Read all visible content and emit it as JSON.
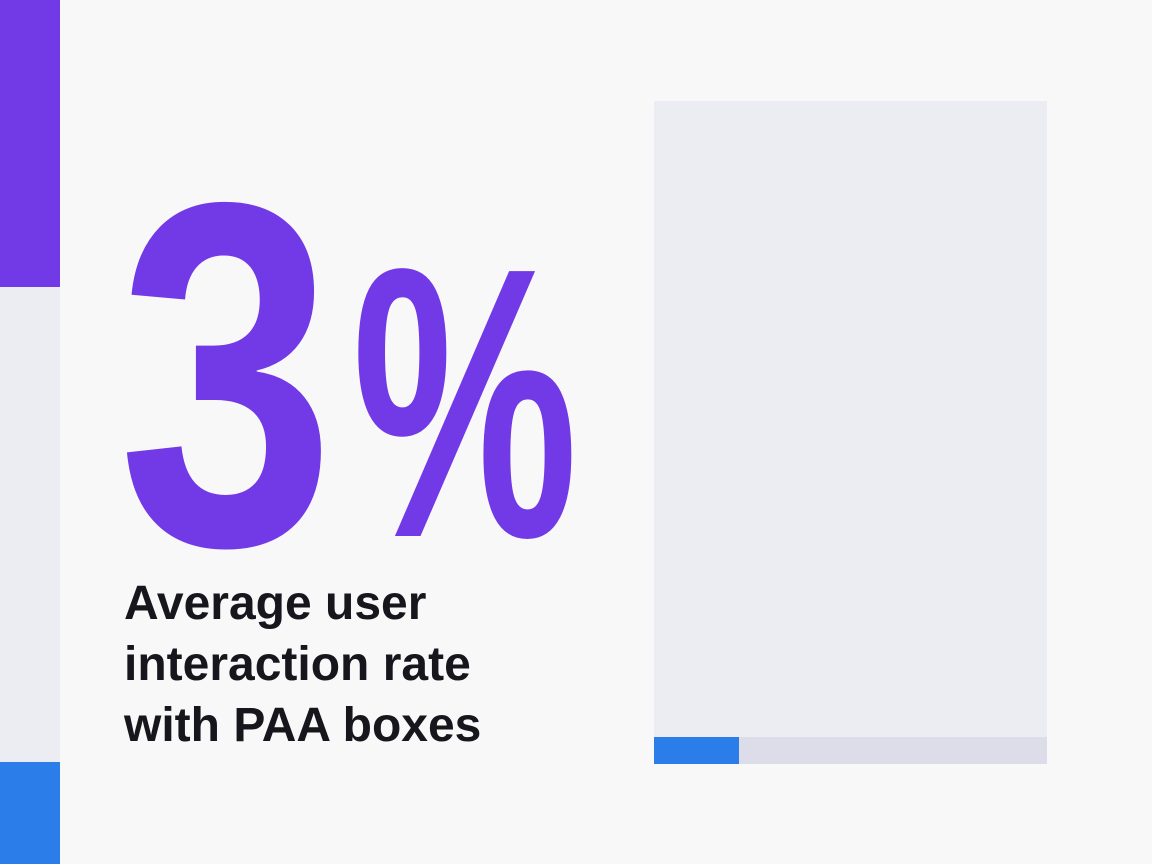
{
  "stat": {
    "value": "3",
    "unit": "%"
  },
  "description": {
    "lines": [
      "Average user",
      "interaction rate",
      "with PAA boxes"
    ]
  }
}
